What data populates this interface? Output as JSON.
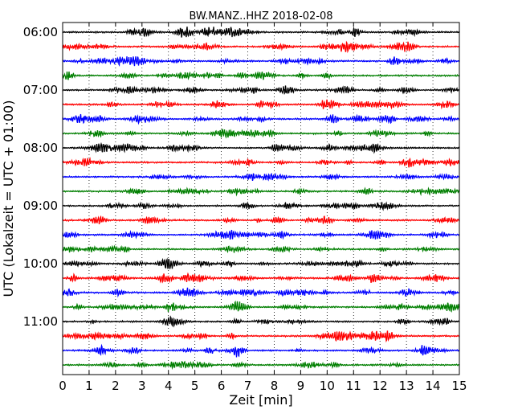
{
  "chart_data": {
    "type": "line",
    "title": "BW.MANZ..HHZ 2018-02-08",
    "xlabel": "Zeit  [min]",
    "ylabel": "UTC (Lokalzeit = UTC + 01:00)",
    "xlim": [
      0,
      15
    ],
    "x_ticks": [
      "0",
      "1",
      "2",
      "3",
      "4",
      "5",
      "6",
      "7",
      "8",
      "9",
      "10",
      "11",
      "12",
      "13",
      "14",
      "15"
    ],
    "y_ticks": [
      "06:00",
      "07:00",
      "08:00",
      "09:00",
      "10:00",
      "11:00"
    ],
    "grid": "vertical dotted",
    "trace_colors": [
      "#000000",
      "#ff0000",
      "#0000ff",
      "#007f00"
    ],
    "start_time": "06:00",
    "minutes_per_line": 15,
    "traces": [
      {
        "start": "06:00"
      },
      {
        "start": "06:15"
      },
      {
        "start": "06:30"
      },
      {
        "start": "06:45"
      },
      {
        "start": "07:00"
      },
      {
        "start": "07:15"
      },
      {
        "start": "07:30"
      },
      {
        "start": "07:45"
      },
      {
        "start": "08:00"
      },
      {
        "start": "08:15"
      },
      {
        "start": "08:30"
      },
      {
        "start": "08:45"
      },
      {
        "start": "09:00"
      },
      {
        "start": "09:15"
      },
      {
        "start": "09:30"
      },
      {
        "start": "09:45"
      },
      {
        "start": "10:00"
      },
      {
        "start": "10:15"
      },
      {
        "start": "10:30"
      },
      {
        "start": "10:45"
      },
      {
        "start": "11:00"
      },
      {
        "start": "11:15"
      },
      {
        "start": "11:30"
      },
      {
        "start": "11:45"
      }
    ]
  }
}
